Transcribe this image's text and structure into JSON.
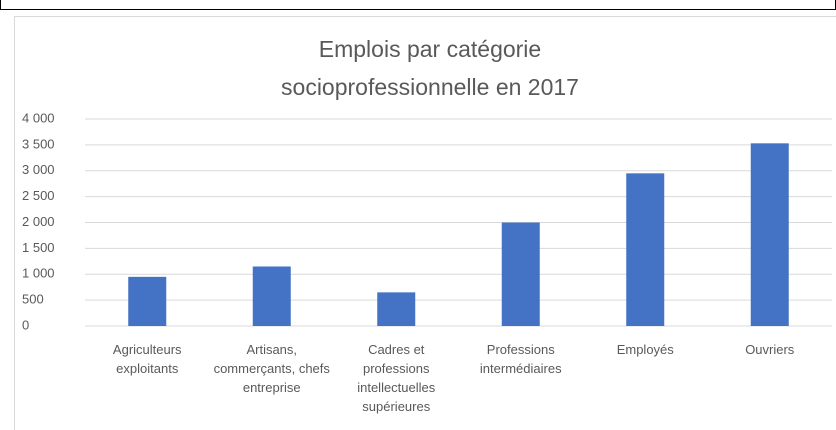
{
  "chart_data": {
    "type": "bar",
    "title": "Emplois par catégorie socioprofessionnelle en 2017",
    "categories": [
      "Agriculteurs exploitants",
      "Artisans, commerçants, chefs entreprise",
      "Cadres et professions intellectuelles supérieures",
      "Professions intermédiaires",
      "Employés",
      "Ouvriers"
    ],
    "values": [
      950,
      1150,
      650,
      2000,
      2950,
      3530
    ],
    "color": "#4472c4",
    "ylim": [
      0,
      4000
    ],
    "yticks": [
      0,
      500,
      {
        "value": 1000,
        "label": "1 000"
      },
      {
        "value": 1500,
        "label": "1 500"
      },
      {
        "value": 2000,
        "label": "2 000"
      },
      {
        "value": 2500,
        "label": "2 500"
      },
      {
        "value": 3000,
        "label": "3 000"
      },
      {
        "value": 3500,
        "label": "3 500"
      },
      {
        "value": 4000,
        "label": "4 000"
      }
    ],
    "grid": true
  }
}
